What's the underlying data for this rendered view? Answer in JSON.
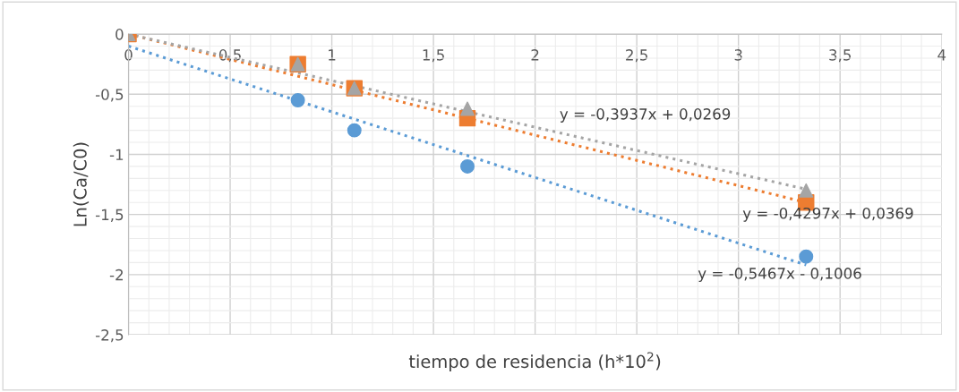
{
  "chart_data": {
    "type": "scatter",
    "xlabel": "tiempo de residencia (h*10$^{2}$)",
    "ylabel": "Ln(Ca/C0)",
    "xlim": [
      0,
      4
    ],
    "xticks": [
      {
        "value": 0,
        "label": "0"
      },
      {
        "value": 0.5,
        "label": "0,5"
      },
      {
        "value": 1,
        "label": "1"
      },
      {
        "value": 1.5,
        "label": "1,5"
      },
      {
        "value": 2,
        "label": "2"
      },
      {
        "value": 2.5,
        "label": "2,5"
      },
      {
        "value": 3,
        "label": "3"
      },
      {
        "value": 3.5,
        "label": "3,5"
      },
      {
        "value": 4,
        "label": "4"
      }
    ],
    "ylim": [
      -2.5,
      0
    ],
    "yticks": [
      {
        "value": -2.5,
        "label": "-2,5"
      },
      {
        "value": -2,
        "label": "-2"
      },
      {
        "value": -1.5,
        "label": "-1,5"
      },
      {
        "value": -1,
        "label": "-1"
      },
      {
        "value": -0.5,
        "label": "-0,5"
      },
      {
        "value": 0,
        "label": "0"
      }
    ],
    "grid": true,
    "legend": false,
    "series": [
      {
        "marker": "circle",
        "color": "#5b9bd5",
        "x": [
          0.833,
          1.111,
          1.667,
          3.333
        ],
        "values": [
          -0.55,
          -0.8,
          -1.1,
          -1.85
        ]
      },
      {
        "marker": "square",
        "color": "#ed7d31",
        "x": [
          0,
          0.833,
          1.111,
          1.667,
          3.333
        ],
        "values": [
          0,
          -0.25,
          -0.45,
          -0.7,
          -1.4
        ]
      },
      {
        "marker": "triangle",
        "color": "#a5a5a5",
        "x": [
          0,
          0.833,
          1.111,
          1.667,
          3.333
        ],
        "values": [
          0,
          -0.25,
          -0.45,
          -0.62,
          -1.3
        ]
      },
      {
        "type": "line",
        "line_style": "dotted",
        "color": "#5b9bd5",
        "x": [
          0,
          3.333
        ],
        "values": [
          -0.1,
          -1.92
        ]
      },
      {
        "type": "line",
        "line_style": "dotted",
        "color": "#ed7d31",
        "x": [
          0,
          3.333
        ],
        "values": [
          0,
          -1.4
        ]
      },
      {
        "type": "line",
        "line_style": "dotted",
        "color": "#a5a5a5",
        "x": [
          0,
          3.333
        ],
        "values": [
          0,
          -1.29
        ]
      }
    ],
    "annotations": [
      "y = -0,3937x + 0,0269",
      "y = -0,4297x + 0,0369",
      "y = -0,5467x - 0,1006"
    ]
  }
}
